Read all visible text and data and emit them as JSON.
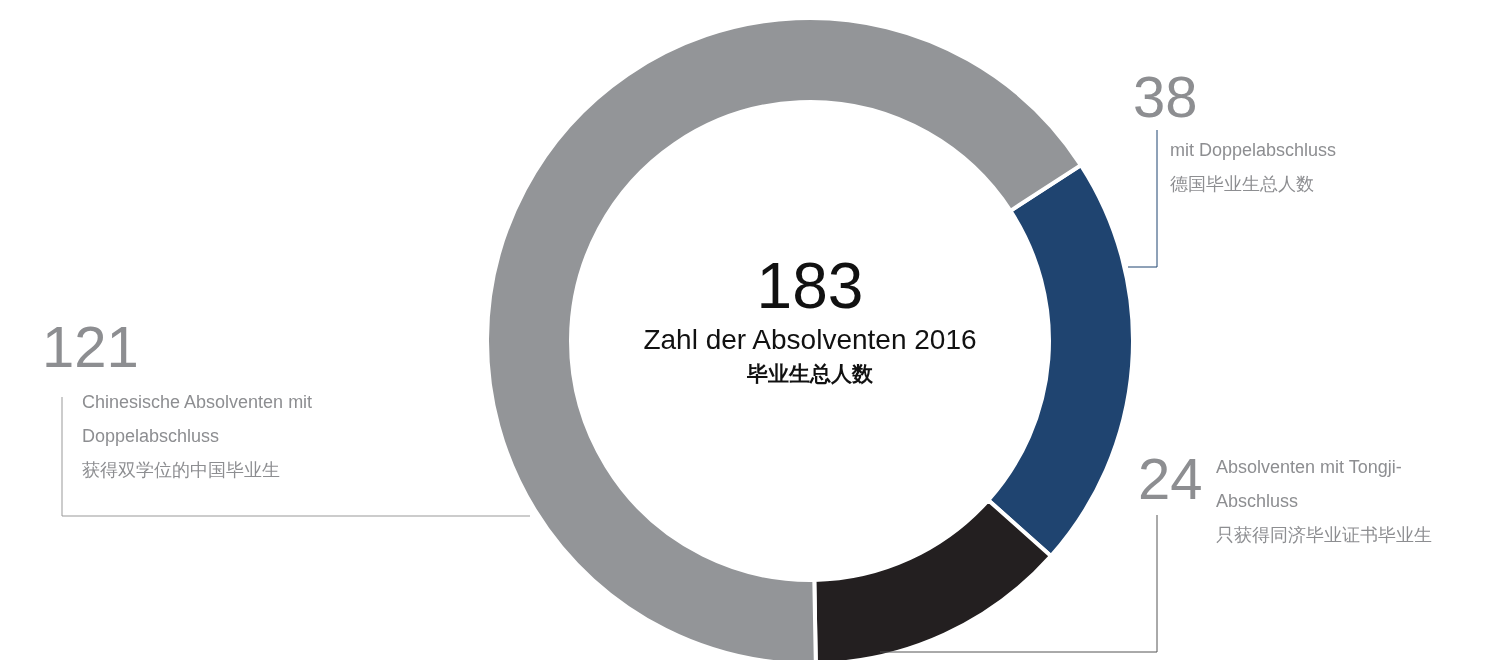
{
  "chart_data": {
    "type": "donut",
    "title": "Zahl der Absolventen 2016",
    "subtitle": "毕业生总人数",
    "categories": [
      "mit Doppelabschluss",
      "Absolventen mit Tongji-Abschluss",
      "Chinesische Absolventen mit Doppelabschluss"
    ],
    "values": [
      38,
      24,
      121
    ],
    "colors": [
      "#1f4470",
      "#231f20",
      "#939598"
    ],
    "data_labels": true,
    "annotations": [
      "德国毕业生总人数",
      "只获得同济毕业证书毕业生",
      "获得双学位的中国毕业生",
      "183"
    ]
  }
}
